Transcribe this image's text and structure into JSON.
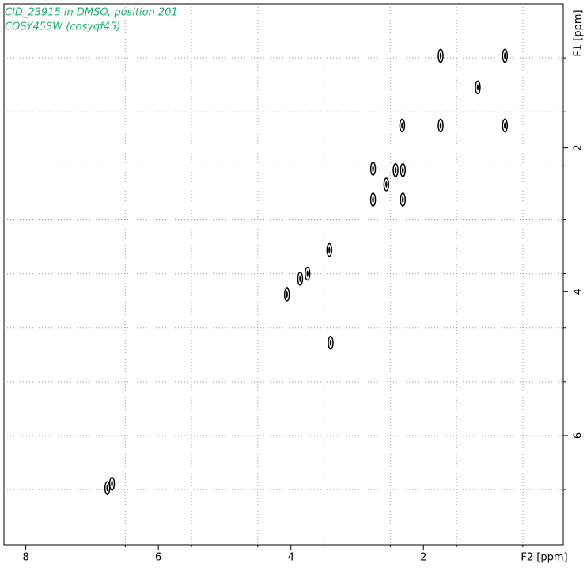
{
  "chart_data": {
    "type": "scatter",
    "title": "CID_23915 in DMSO, position 201",
    "subtitle": "COSY45SW (cosyqf45)",
    "title_color": "#20b070",
    "x_label": "F2 [ppm]",
    "y_label": "F1 [ppm]",
    "xlim": [
      8.33,
      -0.11
    ],
    "ylim": [
      0,
      7.52
    ],
    "xticks": [
      8,
      6,
      4,
      2
    ],
    "yticks": [
      2,
      4,
      6
    ],
    "xgrid": [
      7.5,
      6.5,
      5.5,
      4.5,
      3.5,
      2.5,
      1.5,
      0.5
    ],
    "ygrid": [
      0.75,
      1.5,
      2.25,
      3,
      3.75,
      4.5,
      5.25,
      6,
      6.75
    ],
    "grid": true,
    "series": [
      {
        "name": "peaks",
        "color": "#000000",
        "x": [
          1.74,
          0.77,
          1.18,
          2.32,
          1.74,
          0.77,
          2.76,
          2.42,
          2.31,
          2.56,
          2.76,
          2.31,
          3.42,
          3.75,
          3.86,
          4.06,
          3.4,
          6.7,
          6.77
        ],
        "values": [
          0.72,
          0.72,
          1.16,
          1.69,
          1.69,
          1.69,
          2.29,
          2.31,
          2.31,
          2.51,
          2.72,
          2.72,
          3.42,
          3.75,
          3.82,
          4.04,
          4.71,
          6.67,
          6.73
        ]
      }
    ]
  }
}
